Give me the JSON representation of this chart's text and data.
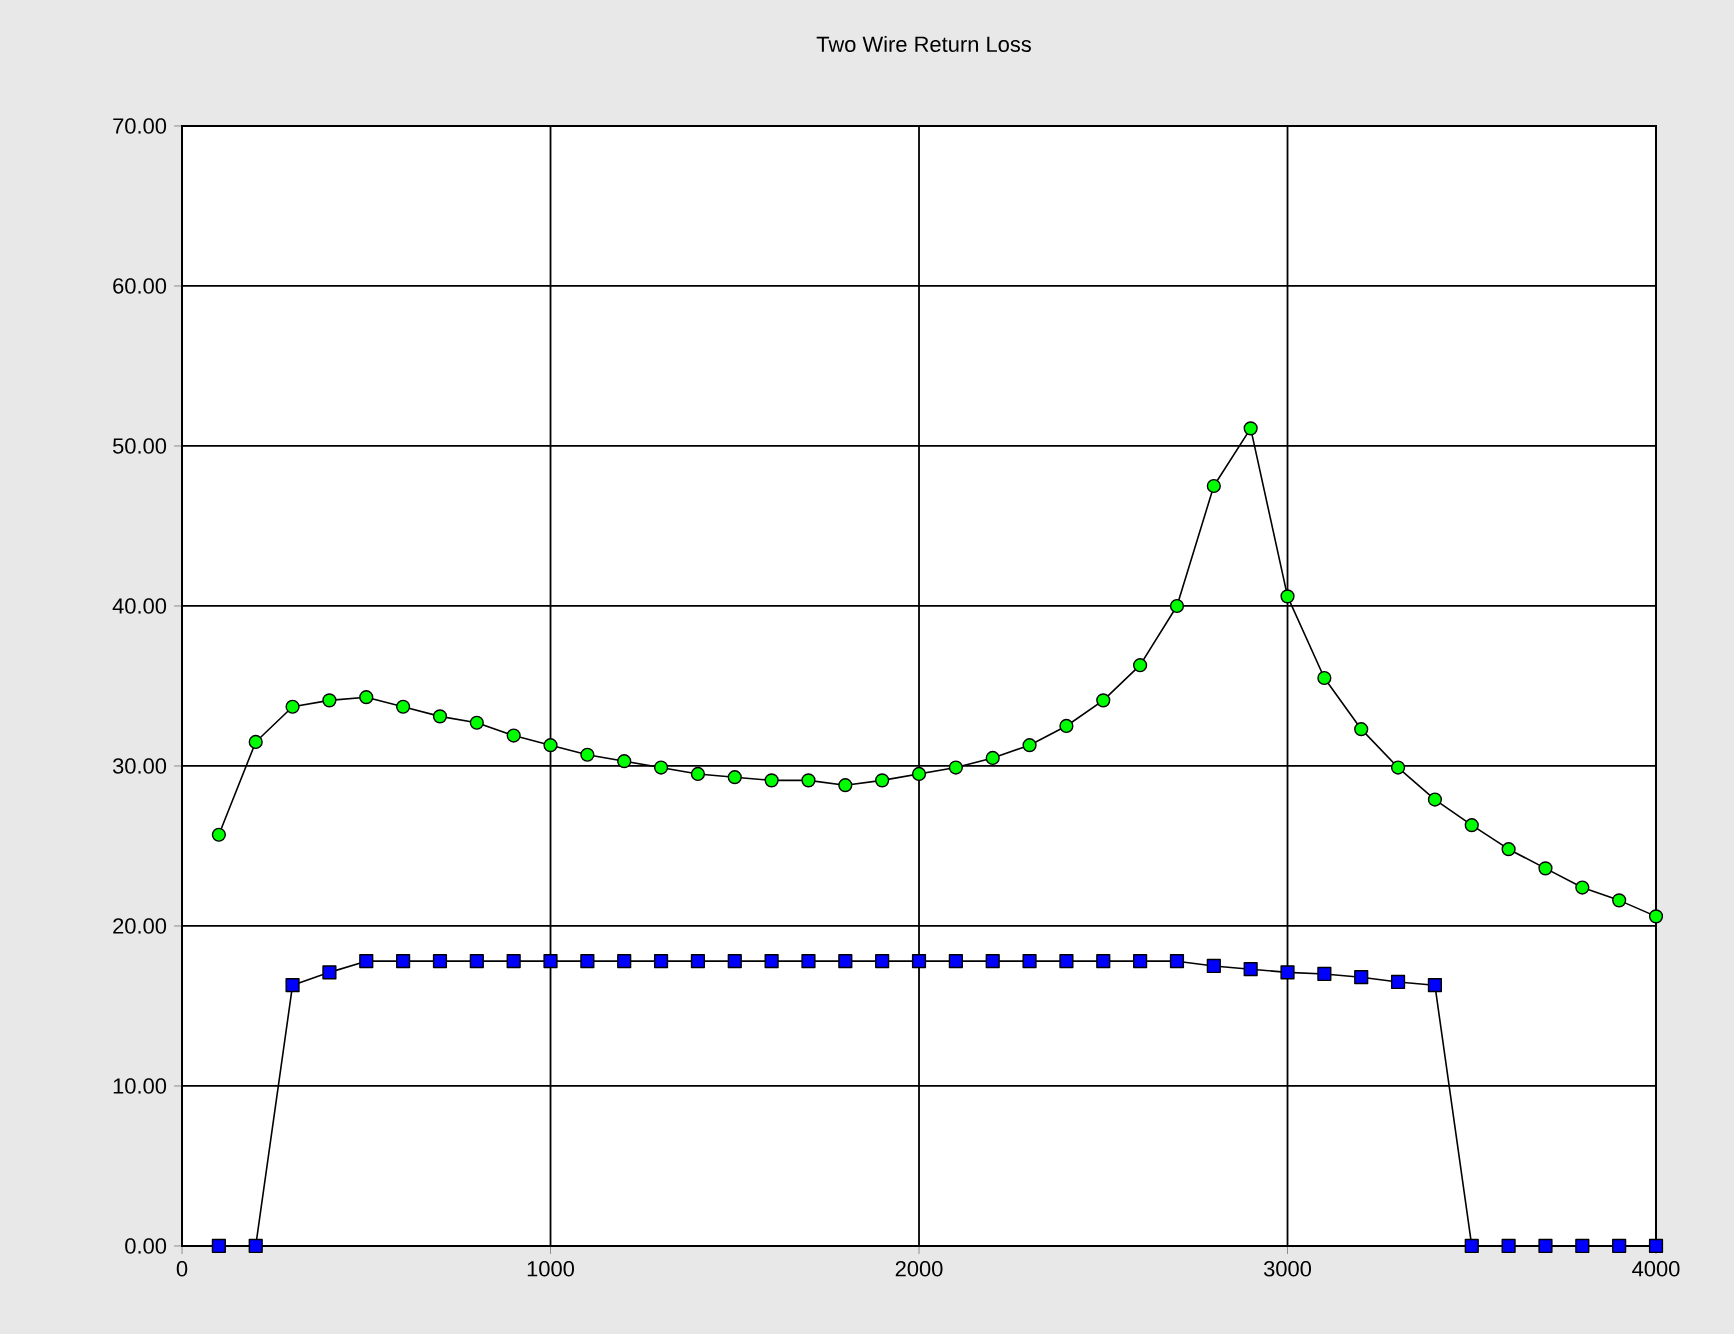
{
  "chart_data": {
    "type": "line",
    "title": "Two Wire Return Loss",
    "xlim": [
      0,
      4000
    ],
    "xticks": [
      0,
      1000,
      2000,
      3000,
      4000
    ],
    "ylim": [
      0,
      70
    ],
    "yticks": [
      {
        "value": 0,
        "label": "0.00"
      },
      {
        "value": 10,
        "label": "10.00"
      },
      {
        "value": 20,
        "label": "20.00"
      },
      {
        "value": 30,
        "label": "30.00"
      },
      {
        "value": 40,
        "label": "40.00"
      },
      {
        "value": 50,
        "label": "50.00"
      },
      {
        "value": 60,
        "label": "60.00"
      },
      {
        "value": 70,
        "label": "70.00"
      }
    ],
    "grid": true,
    "line_style": "solid",
    "x": [
      100,
      200,
      300,
      400,
      500,
      600,
      700,
      800,
      900,
      1000,
      1100,
      1200,
      1300,
      1400,
      1500,
      1600,
      1700,
      1800,
      1900,
      2000,
      2100,
      2200,
      2300,
      2400,
      2500,
      2600,
      2700,
      2800,
      2900,
      3000,
      3100,
      3200,
      3300,
      3400,
      3500,
      3600,
      3700,
      3800,
      3900,
      4000
    ],
    "series": [
      {
        "color": "#00ff00",
        "marker": "circle",
        "values": [
          25.7,
          31.5,
          33.7,
          34.1,
          34.3,
          33.7,
          33.1,
          32.7,
          31.9,
          31.3,
          30.7,
          30.3,
          29.9,
          29.5,
          29.3,
          29.1,
          29.1,
          28.8,
          29.1,
          29.5,
          29.9,
          30.5,
          31.3,
          32.5,
          34.1,
          36.3,
          40.0,
          47.5,
          51.1,
          40.6,
          35.5,
          32.3,
          29.9,
          27.9,
          26.3,
          24.8,
          23.6,
          22.4,
          21.6,
          20.6
        ]
      },
      {
        "color": "#0000ff",
        "marker": "square",
        "values": [
          0,
          0,
          16.3,
          17.1,
          17.8,
          17.8,
          17.8,
          17.8,
          17.8,
          17.8,
          17.8,
          17.8,
          17.8,
          17.8,
          17.8,
          17.8,
          17.8,
          17.8,
          17.8,
          17.8,
          17.8,
          17.8,
          17.8,
          17.8,
          17.8,
          17.8,
          17.8,
          17.5,
          17.3,
          17.1,
          17.0,
          16.8,
          16.5,
          16.3,
          0,
          0,
          0,
          0,
          0,
          0
        ]
      }
    ]
  }
}
